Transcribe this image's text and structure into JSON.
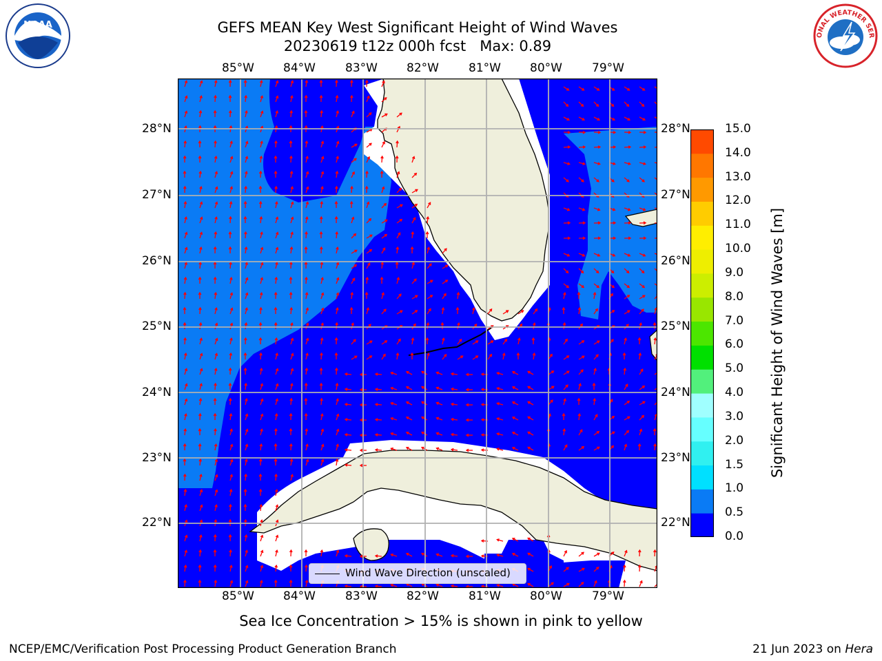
{
  "title": {
    "line1": "GEFS MEAN Key West Significant Height of Wind Waves",
    "line2": "20230619 t12z 000h fcst   Max: 0.89"
  },
  "logos": {
    "left": {
      "icon": "noaa-logo",
      "text": "NOAA"
    },
    "right": {
      "icon": "national-weather-service-logo",
      "text": "NATIONAL WEATHER SERVICE"
    }
  },
  "axes": {
    "lon_labels": [
      "85°W",
      "84°W",
      "83°W",
      "82°W",
      "81°W",
      "80°W",
      "79°W"
    ],
    "lat_labels": [
      "28°N",
      "27°N",
      "26°N",
      "25°N",
      "24°N",
      "23°N",
      "22°N"
    ]
  },
  "legend": {
    "label": "Wind Wave Direction (unscaled)"
  },
  "colorbar": {
    "label": "Significant Height of Wind Waves [m]",
    "ticks": [
      "0.0",
      "0.5",
      "1.0",
      "1.5",
      "2.0",
      "3.0",
      "4.0",
      "5.0",
      "6.0",
      "7.0",
      "8.0",
      "9.0",
      "10.0",
      "11.0",
      "12.0",
      "13.0",
      "14.0",
      "15.0"
    ],
    "colors": [
      "#0000ff",
      "#0a7bf5",
      "#00e0ff",
      "#30f0f0",
      "#66ffff",
      "#a0ffff",
      "#52f07c",
      "#00e000",
      "#4ce600",
      "#99e600",
      "#ccee00",
      "#eeee00",
      "#ffee00",
      "#ffcc00",
      "#ff9900",
      "#ff7700",
      "#ff4a00",
      "#ff2200",
      "#ff0000"
    ]
  },
  "colors": {
    "wave_low": "#0000ff",
    "wave_mid": "#0a7bf5",
    "land": "#efefdc",
    "arrow": "#ff0000",
    "grid": "#b0b0b0"
  },
  "caption": "Sea Ice Concentration > 15% is shown in pink to yellow",
  "footer": {
    "left": "NCEP/EMC/Verification Post Processing Product Generation Branch",
    "date": "21 Jun 2023 on ",
    "machine": "Hera"
  }
}
